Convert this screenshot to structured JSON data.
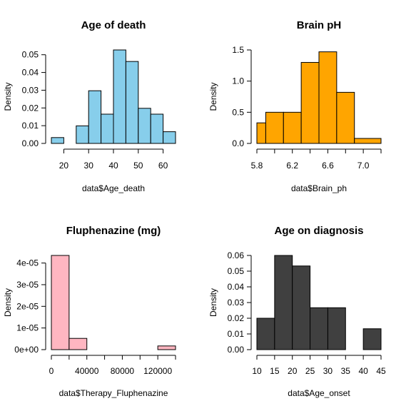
{
  "chart_data": [
    {
      "type": "bar",
      "title": "Age of death",
      "xlabel": "data$Age_death",
      "ylabel": "Density",
      "color": "#87CEEB",
      "bins": [
        {
          "x0": 15,
          "x1": 20,
          "density": 0.0033
        },
        {
          "x0": 20,
          "x1": 25,
          "density": 0.0
        },
        {
          "x0": 25,
          "x1": 30,
          "density": 0.0099
        },
        {
          "x0": 30,
          "x1": 35,
          "density": 0.0297
        },
        {
          "x0": 35,
          "x1": 40,
          "density": 0.0165
        },
        {
          "x0": 40,
          "x1": 45,
          "density": 0.0527
        },
        {
          "x0": 45,
          "x1": 50,
          "density": 0.0462
        },
        {
          "x0": 50,
          "x1": 55,
          "density": 0.0198
        },
        {
          "x0": 55,
          "x1": 60,
          "density": 0.0165
        },
        {
          "x0": 60,
          "x1": 65,
          "density": 0.0066
        }
      ],
      "xticks": [
        20,
        30,
        40,
        50,
        60
      ],
      "xtick_labels": [
        "20",
        "30",
        "40",
        "50",
        "60"
      ],
      "yticks": [
        0.0,
        0.01,
        0.02,
        0.03,
        0.04,
        0.05
      ],
      "ytick_labels": [
        "0.00",
        "0.01",
        "0.02",
        "0.03",
        "0.04",
        "0.05"
      ],
      "xlim": [
        15,
        65
      ],
      "ylim": [
        0,
        0.0527
      ]
    },
    {
      "type": "bar",
      "title": "Brain pH",
      "xlabel": "data$Brain_ph",
      "ylabel": "Density",
      "color": "#FFA500",
      "bins": [
        {
          "x0": 5.8,
          "x1": 5.9,
          "density": 0.33
        },
        {
          "x0": 5.9,
          "x1": 6.1,
          "density": 0.5
        },
        {
          "x0": 6.1,
          "x1": 6.3,
          "density": 0.5
        },
        {
          "x0": 6.3,
          "x1": 6.5,
          "density": 1.3
        },
        {
          "x0": 6.5,
          "x1": 6.7,
          "density": 1.47
        },
        {
          "x0": 6.7,
          "x1": 6.9,
          "density": 0.82
        },
        {
          "x0": 6.9,
          "x1": 7.2,
          "density": 0.08
        }
      ],
      "xticks": [
        5.8,
        6.0,
        6.2,
        6.4,
        6.6,
        6.8,
        7.0,
        7.2
      ],
      "xtick_labels": [
        "5.8",
        "",
        "6.2",
        "",
        "6.6",
        "",
        "7.0",
        ""
      ],
      "yticks": [
        0.0,
        0.5,
        1.0,
        1.5
      ],
      "ytick_labels": [
        "0.0",
        "0.5",
        "1.0",
        "1.5"
      ],
      "xlim": [
        5.8,
        7.2
      ],
      "ylim": [
        0,
        1.5
      ]
    },
    {
      "type": "bar",
      "title": "Fluphenazine (mg)",
      "xlabel": "data$Therapy_Fluphenazine",
      "ylabel": "Density",
      "color": "#FFB6C1",
      "bins": [
        {
          "x0": 0,
          "x1": 20000,
          "density": 4.35e-05
        },
        {
          "x0": 20000,
          "x1": 40000,
          "density": 5.2e-06
        },
        {
          "x0": 40000,
          "x1": 60000,
          "density": 0.0
        },
        {
          "x0": 60000,
          "x1": 80000,
          "density": 0.0
        },
        {
          "x0": 80000,
          "x1": 100000,
          "density": 0.0
        },
        {
          "x0": 100000,
          "x1": 120000,
          "density": 0.0
        },
        {
          "x0": 120000,
          "x1": 140000,
          "density": 1.7e-06
        }
      ],
      "xticks": [
        0,
        20000,
        40000,
        60000,
        80000,
        100000,
        120000,
        140000
      ],
      "xtick_labels": [
        "0",
        "",
        "40000",
        "",
        "80000",
        "",
        "120000",
        ""
      ],
      "yticks": [
        0,
        1e-05,
        2e-05,
        3e-05,
        4e-05
      ],
      "ytick_labels": [
        "0e+00",
        "1e-05",
        "2e-05",
        "3e-05",
        "4e-05"
      ],
      "xlim": [
        0,
        140000
      ],
      "ylim": [
        0,
        4.35e-05
      ]
    },
    {
      "type": "bar",
      "title": "Age on diagnosis",
      "xlabel": "data$Age_onset",
      "ylabel": "Density",
      "color": "#404040",
      "bins": [
        {
          "x0": 10,
          "x1": 15,
          "density": 0.02
        },
        {
          "x0": 15,
          "x1": 20,
          "density": 0.06
        },
        {
          "x0": 20,
          "x1": 25,
          "density": 0.0533
        },
        {
          "x0": 25,
          "x1": 30,
          "density": 0.0267
        },
        {
          "x0": 30,
          "x1": 35,
          "density": 0.0267
        },
        {
          "x0": 35,
          "x1": 40,
          "density": 0.0
        },
        {
          "x0": 40,
          "x1": 45,
          "density": 0.0133
        }
      ],
      "xticks": [
        10,
        15,
        20,
        25,
        30,
        35,
        40,
        45
      ],
      "xtick_labels": [
        "10",
        "15",
        "20",
        "25",
        "30",
        "35",
        "40",
        "45"
      ],
      "yticks": [
        0.0,
        0.01,
        0.02,
        0.03,
        0.04,
        0.05,
        0.06
      ],
      "ytick_labels": [
        "0.00",
        "0.01",
        "0.02",
        "0.03",
        "0.04",
        "0.05",
        "0.06"
      ],
      "xlim": [
        10,
        45
      ],
      "ylim": [
        0,
        0.06
      ]
    }
  ]
}
